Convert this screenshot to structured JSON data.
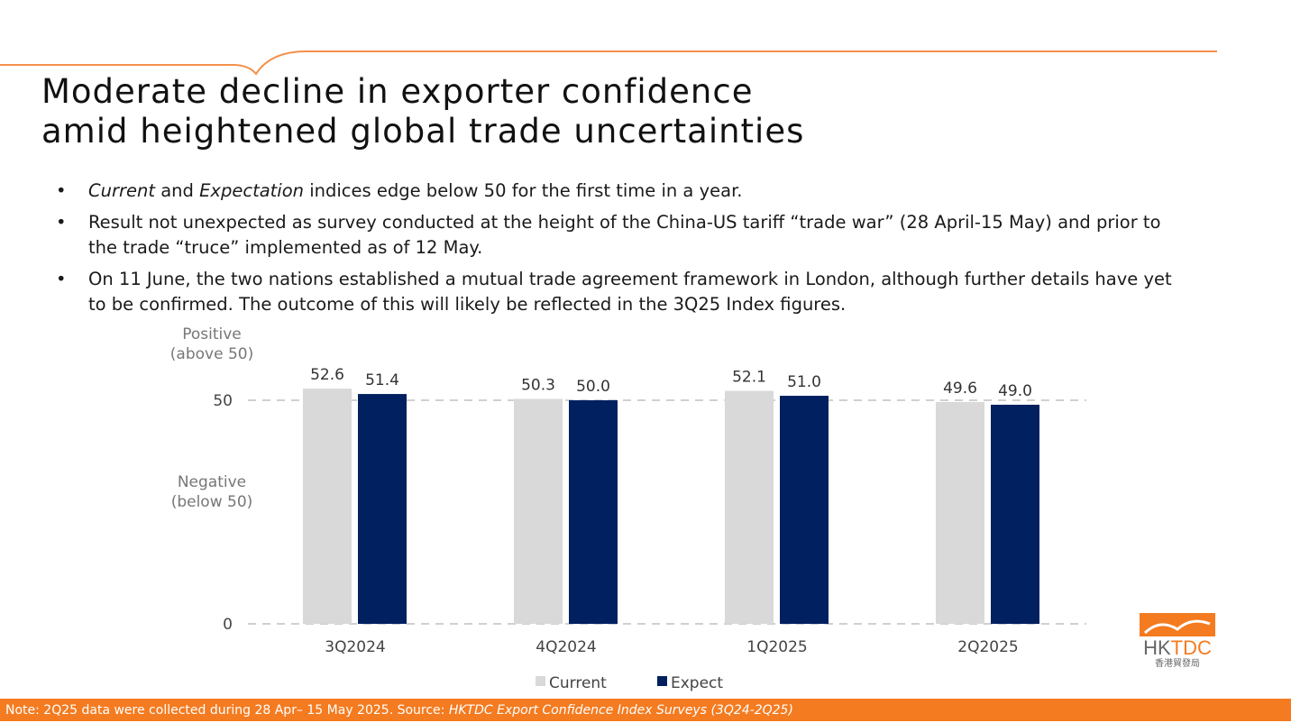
{
  "title_line1": "Moderate decline in exporter confidence",
  "title_line2": "amid heightened global trade uncertainties",
  "bullets": [
    {
      "em1": "Current",
      "t1": " and ",
      "em2": "Expectation",
      "t2": " indices edge below 50 for the first time in a year."
    },
    {
      "text": "Result not unexpected as survey conducted at the height of the China-US tariff “trade war” (28 April-15 May) and prior to the trade “truce” implemented as of 12 May."
    },
    {
      "text": "On 11 June, the two nations established a mutual trade agreement framework in London, although further details have yet to be confirmed. The outcome of this will likely be reflected in the 3Q25 Index figures."
    }
  ],
  "annotations": {
    "positive": "Positive",
    "positive_sub": "(above 50)",
    "negative": "Negative",
    "negative_sub": "(below 50)"
  },
  "chart_data": {
    "type": "bar",
    "categories": [
      "3Q2024",
      "4Q2024",
      "1Q2025",
      "2Q2025"
    ],
    "series": [
      {
        "name": "Current",
        "color": "#d9d9d9",
        "values": [
          52.6,
          50.3,
          52.1,
          49.6
        ]
      },
      {
        "name": "Expect",
        "color": "#002060",
        "values": [
          51.4,
          50.0,
          51.0,
          49.0
        ]
      }
    ],
    "yticks": [
      0,
      50
    ],
    "ylim": [
      0,
      55
    ],
    "grid": "dashed at ticks",
    "legend": "bottom-center"
  },
  "footer": {
    "note": "Note: 2Q25 data were collected during 28 Apr– 15 May 2025.  Source: ",
    "source": "HKTDC Export Confidence Index Surveys (3Q24-2Q25)"
  },
  "logo": {
    "text": "HKTDC",
    "sub": "香港貿發局"
  },
  "colors": {
    "accent": "#f47b20",
    "expect": "#002060",
    "current": "#d9d9d9"
  }
}
